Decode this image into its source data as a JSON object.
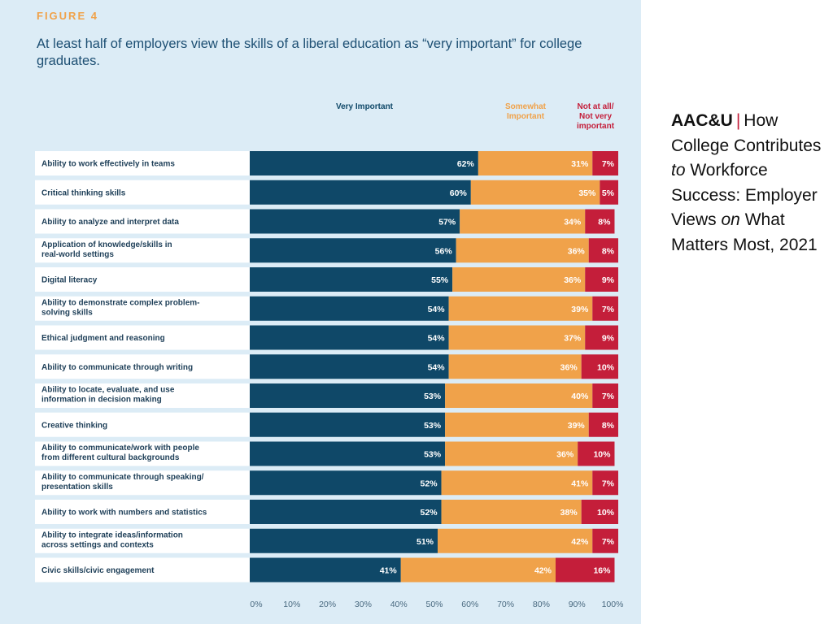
{
  "caption": {
    "org": "AAC&U",
    "separator": "|",
    "title_part1": "How College Contributes",
    "title_italic1": "to",
    "title_part2": "Workforce Success: Employer Views",
    "title_italic2": "on",
    "title_part3": "What Matters Most, 2021"
  },
  "colors": {
    "very": "#0f4868",
    "somewhat": "#f0a24a",
    "not": "#c41e3a",
    "background": "#dcecf6",
    "label_bg": "#ffffff"
  },
  "chart_data": {
    "type": "bar",
    "orientation": "horizontal-stacked",
    "figure_label": "FIGURE 4",
    "title": "At least half of employers view the skills of a liberal education as “very important” for college graduates.",
    "legend": {
      "very": "Very Important",
      "somewhat": "Somewhat Important",
      "not": "Not at all/ Not very important"
    },
    "categories": [
      "Ability to work effectively in teams",
      "Critical thinking skills",
      "Ability to analyze and interpret data",
      "Application of knowledge/skills in real-world settings",
      "Digital literacy",
      "Ability to demonstrate complex problem-solving skills",
      "Ethical judgment and reasoning",
      "Ability to communicate through writing",
      "Ability to locate, evaluate, and use information in decision making",
      "Creative thinking",
      "Ability to communicate/work with people from different cultural backgrounds",
      "Ability to communicate through speaking/ presentation skills",
      "Ability to work with numbers and statistics",
      "Ability to integrate ideas/information across settings and contexts",
      "Civic skills/civic engagement"
    ],
    "category_lines": [
      [
        "Ability to work effectively in teams"
      ],
      [
        "Critical thinking skills"
      ],
      [
        "Ability to analyze and interpret data"
      ],
      [
        "Application of knowledge/skills in",
        "real-world settings"
      ],
      [
        "Digital literacy"
      ],
      [
        "Ability to demonstrate complex problem-",
        "solving skills"
      ],
      [
        "Ethical judgment and reasoning"
      ],
      [
        "Ability to communicate through writing"
      ],
      [
        "Ability to locate, evaluate, and use",
        "information in decision making"
      ],
      [
        "Creative thinking"
      ],
      [
        "Ability to communicate/work with people",
        "from different cultural backgrounds"
      ],
      [
        "Ability to communicate through speaking/",
        "presentation skills"
      ],
      [
        "Ability to work with numbers and statistics"
      ],
      [
        "Ability to integrate ideas/information",
        "across settings and contexts"
      ],
      [
        "Civic skills/civic engagement"
      ]
    ],
    "series": [
      {
        "name": "Very Important",
        "key": "very",
        "values": [
          62,
          60,
          57,
          56,
          55,
          54,
          54,
          54,
          53,
          53,
          53,
          52,
          52,
          51,
          41
        ]
      },
      {
        "name": "Somewhat Important",
        "key": "somewhat",
        "values": [
          31,
          35,
          34,
          36,
          36,
          39,
          37,
          36,
          40,
          39,
          36,
          41,
          38,
          42,
          42
        ]
      },
      {
        "name": "Not at all/Not very important",
        "key": "not",
        "values": [
          7,
          5,
          8,
          8,
          9,
          7,
          9,
          10,
          7,
          8,
          10,
          7,
          10,
          7,
          16
        ]
      }
    ],
    "xlim": [
      0,
      100
    ],
    "xticks": [
      "0%",
      "10%",
      "20%",
      "30%",
      "40%",
      "50%",
      "60%",
      "70%",
      "80%",
      "90%",
      "100%"
    ],
    "value_suffix": "%"
  }
}
